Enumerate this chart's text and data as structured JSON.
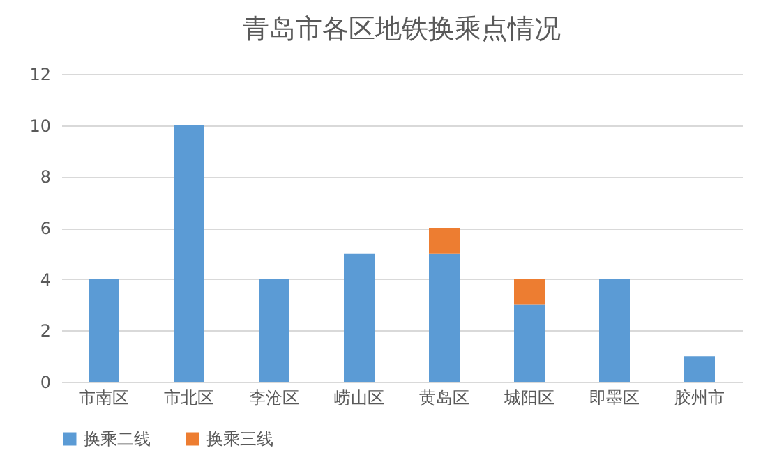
{
  "chart_data": {
    "type": "bar",
    "title": "青岛市各区地铁换乘点情况",
    "categories": [
      "市南区",
      "市北区",
      "李沧区",
      "崂山区",
      "黄岛区",
      "城阳区",
      "即墨区",
      "胶州市"
    ],
    "series": [
      {
        "name": "换乘二线",
        "color": "#5b9bd5",
        "values": [
          4,
          10,
          4,
          5,
          5,
          3,
          4,
          1
        ]
      },
      {
        "name": "换乘三线",
        "color": "#ed7d31",
        "values": [
          null,
          null,
          null,
          null,
          1,
          1,
          null,
          null
        ]
      }
    ],
    "stacked": true,
    "ylim": [
      0,
      12
    ],
    "yticks": [
      0,
      2,
      4,
      6,
      8,
      10,
      12
    ],
    "grid": "y",
    "legend": "bottom"
  }
}
